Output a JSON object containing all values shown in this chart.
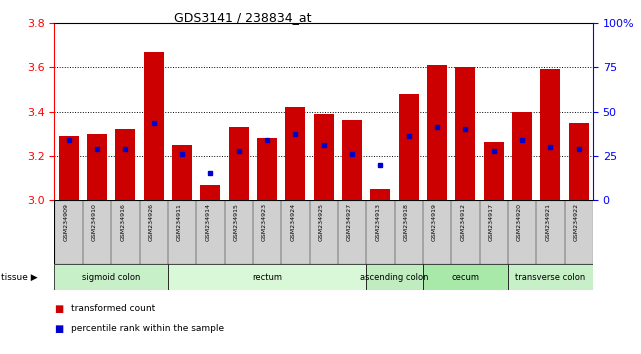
{
  "title": "GDS3141 / 238834_at",
  "samples": [
    "GSM234909",
    "GSM234910",
    "GSM234916",
    "GSM234926",
    "GSM234911",
    "GSM234914",
    "GSM234915",
    "GSM234923",
    "GSM234924",
    "GSM234925",
    "GSM234927",
    "GSM234913",
    "GSM234918",
    "GSM234919",
    "GSM234912",
    "GSM234917",
    "GSM234920",
    "GSM234921",
    "GSM234922"
  ],
  "bar_values": [
    3.29,
    3.3,
    3.32,
    3.67,
    3.25,
    3.07,
    3.33,
    3.28,
    3.42,
    3.39,
    3.36,
    3.05,
    3.48,
    3.61,
    3.6,
    3.26,
    3.4,
    3.59,
    3.35
  ],
  "percentile_values": [
    3.27,
    3.23,
    3.23,
    3.35,
    3.21,
    3.12,
    3.22,
    3.27,
    3.3,
    3.25,
    3.21,
    3.16,
    3.29,
    3.33,
    3.32,
    3.22,
    3.27,
    3.24,
    3.23
  ],
  "bar_color": "#cc0000",
  "percentile_color": "#0000cc",
  "ymin": 3.0,
  "ymax": 3.8,
  "yticks": [
    3.0,
    3.2,
    3.4,
    3.6,
    3.8
  ],
  "y2min": 0,
  "y2max": 100,
  "y2ticks": [
    0,
    25,
    50,
    75,
    100
  ],
  "y2labels": [
    "0",
    "25",
    "50",
    "75",
    "100%"
  ],
  "tissue_groups": [
    {
      "label": "sigmoid colon",
      "start": 0,
      "end": 4,
      "color": "#c8f0c8"
    },
    {
      "label": "rectum",
      "start": 4,
      "end": 11,
      "color": "#d8f8d8"
    },
    {
      "label": "ascending colon",
      "start": 11,
      "end": 13,
      "color": "#c0ecc0"
    },
    {
      "label": "cecum",
      "start": 13,
      "end": 16,
      "color": "#a8e8a8"
    },
    {
      "label": "transverse colon",
      "start": 16,
      "end": 19,
      "color": "#c8f0c8"
    }
  ],
  "legend_items": [
    {
      "label": "transformed count",
      "color": "#cc0000"
    },
    {
      "label": "percentile rank within the sample",
      "color": "#0000cc"
    }
  ],
  "bar_width": 0.7,
  "tick_area_color": "#d0d0d0",
  "grid_dotted": [
    3.2,
    3.4,
    3.6
  ]
}
